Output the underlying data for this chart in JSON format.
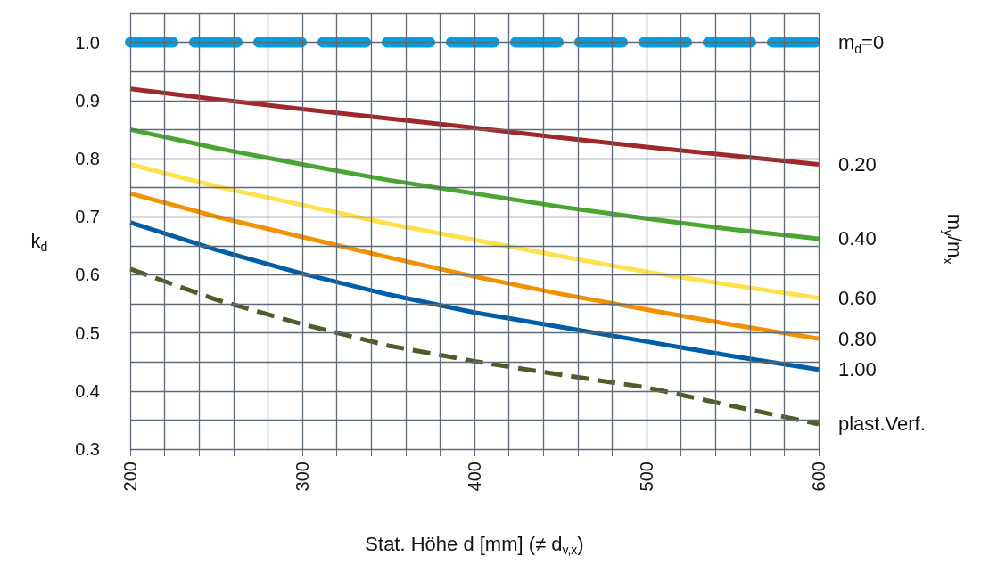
{
  "chart_data": {
    "type": "line",
    "xlabel": "Stat. Höhe d [mm] (≠ d$_{v,x}$)",
    "ylabel": "k$_{d}$",
    "annotations": [
      "m$_{y}$/m$_{x}$"
    ],
    "x": [
      200,
      250,
      300,
      350,
      400,
      450,
      500,
      550,
      600
    ],
    "series": [
      {
        "name": "m$_{d}$=0",
        "color": "#009fe3",
        "line_style": "dashed",
        "values": [
          1.0,
          1.0,
          1.0,
          1.0,
          1.0,
          1.0,
          1.0,
          1.0,
          1.0
        ]
      },
      {
        "name": "0.20",
        "color": "#a0282a",
        "line_style": "solid",
        "values": [
          0.92,
          0.902,
          0.885,
          0.869,
          0.853,
          0.836,
          0.82,
          0.805,
          0.79
        ]
      },
      {
        "name": "0.40",
        "color": "#4aa632",
        "line_style": "solid",
        "values": [
          0.85,
          0.818,
          0.79,
          0.763,
          0.74,
          0.717,
          0.697,
          0.678,
          0.662
        ]
      },
      {
        "name": "0.60",
        "color": "#ffe14d",
        "line_style": "solid",
        "values": [
          0.79,
          0.752,
          0.72,
          0.688,
          0.66,
          0.632,
          0.605,
          0.582,
          0.56
        ]
      },
      {
        "name": "0.80",
        "color": "#f39200",
        "line_style": "solid",
        "values": [
          0.74,
          0.7,
          0.665,
          0.63,
          0.597,
          0.567,
          0.54,
          0.514,
          0.49
        ]
      },
      {
        "name": "1.00",
        "color": "#005ea8",
        "line_style": "solid",
        "values": [
          0.69,
          0.643,
          0.602,
          0.566,
          0.535,
          0.51,
          0.485,
          0.46,
          0.437
        ]
      },
      {
        "name": "plast.Verf.",
        "color": "#4f5b2a",
        "line_style": "dashed",
        "values": [
          0.61,
          0.557,
          0.515,
          0.478,
          0.451,
          0.428,
          0.406,
          0.374,
          0.343
        ]
      }
    ],
    "xlim": [
      200,
      600
    ],
    "xticks": [
      200,
      {
        "value": 220,
        "label": null
      },
      {
        "value": 240,
        "label": null
      },
      {
        "value": 260,
        "label": null
      },
      {
        "value": 280,
        "label": null
      },
      300,
      {
        "value": 320,
        "label": null
      },
      {
        "value": 340,
        "label": null
      },
      {
        "value": 360,
        "label": null
      },
      {
        "value": 380,
        "label": null
      },
      400,
      {
        "value": 420,
        "label": null
      },
      {
        "value": 440,
        "label": null
      },
      {
        "value": 460,
        "label": null
      },
      {
        "value": 480,
        "label": null
      },
      500,
      {
        "value": 520,
        "label": null
      },
      {
        "value": 540,
        "label": null
      },
      {
        "value": 560,
        "label": null
      },
      {
        "value": 580,
        "label": null
      },
      600
    ],
    "ylim": [
      0.3,
      1.05
    ],
    "yticks": [
      0.3,
      {
        "value": 0.35,
        "label": null
      },
      0.4,
      {
        "value": 0.45,
        "label": null
      },
      0.5,
      {
        "value": 0.55,
        "label": null
      },
      0.6,
      {
        "value": 0.65,
        "label": null
      },
      0.7,
      {
        "value": 0.75,
        "label": null
      },
      0.8,
      {
        "value": 0.85,
        "label": null
      },
      0.9,
      {
        "value": 0.95,
        "label": null
      },
      {
        "value": 1.0,
        "label": "1.0"
      },
      {
        "value": 1.05,
        "label": null
      }
    ],
    "grid": true,
    "legend": false,
    "marker": "none"
  }
}
